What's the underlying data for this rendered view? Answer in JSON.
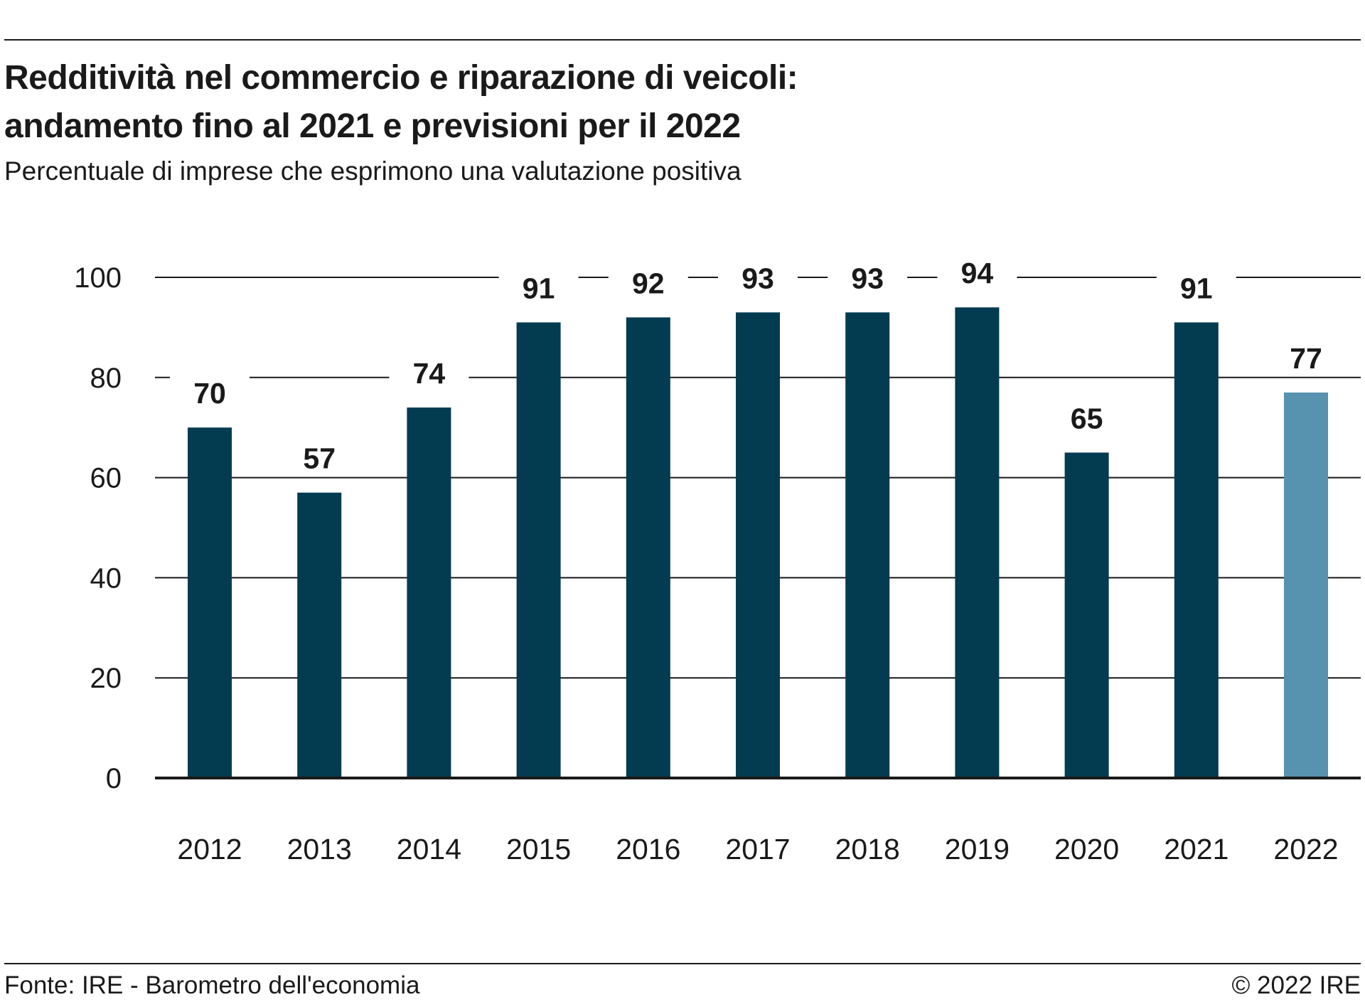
{
  "header": {
    "title_line_1": "Redditività nel commercio e riparazione di veicoli:",
    "title_line_2": "andamento fino al 2021 e previsioni per il 2022",
    "subtitle": "Percentuale di imprese che esprimono una valutazione positiva"
  },
  "footer": {
    "source": "Fonte: IRE - Barometro dell'economia",
    "copyright": "© 2022 IRE"
  },
  "colors": {
    "actual_bar": "#033b51",
    "forecast_bar": "#5792ae",
    "gridline": "#1a1a1a",
    "text": "#1a1a1a"
  },
  "chart_data": {
    "type": "bar",
    "title": "Redditività nel commercio e riparazione di veicoli: andamento fino al 2021 e previsioni per il 2022",
    "subtitle": "Percentuale di imprese che esprimono una valutazione positiva",
    "categories": [
      "2012",
      "2013",
      "2014",
      "2015",
      "2016",
      "2017",
      "2018",
      "2019",
      "2020",
      "2021",
      "2022"
    ],
    "values": [
      70,
      57,
      74,
      91,
      92,
      93,
      93,
      94,
      65,
      91,
      77
    ],
    "data_labels": [
      "70",
      "57",
      "74",
      "91",
      "92",
      "93",
      "93",
      "94",
      "65",
      "91",
      "77"
    ],
    "forecast_index": 10,
    "xlabel": "",
    "ylabel": "",
    "ylim": [
      0,
      100
    ],
    "yticks": [
      0,
      20,
      40,
      60,
      80,
      100
    ],
    "ytick_labels": [
      "0",
      "20",
      "40",
      "60",
      "80",
      "100"
    ],
    "grid": true,
    "legend": "none"
  }
}
